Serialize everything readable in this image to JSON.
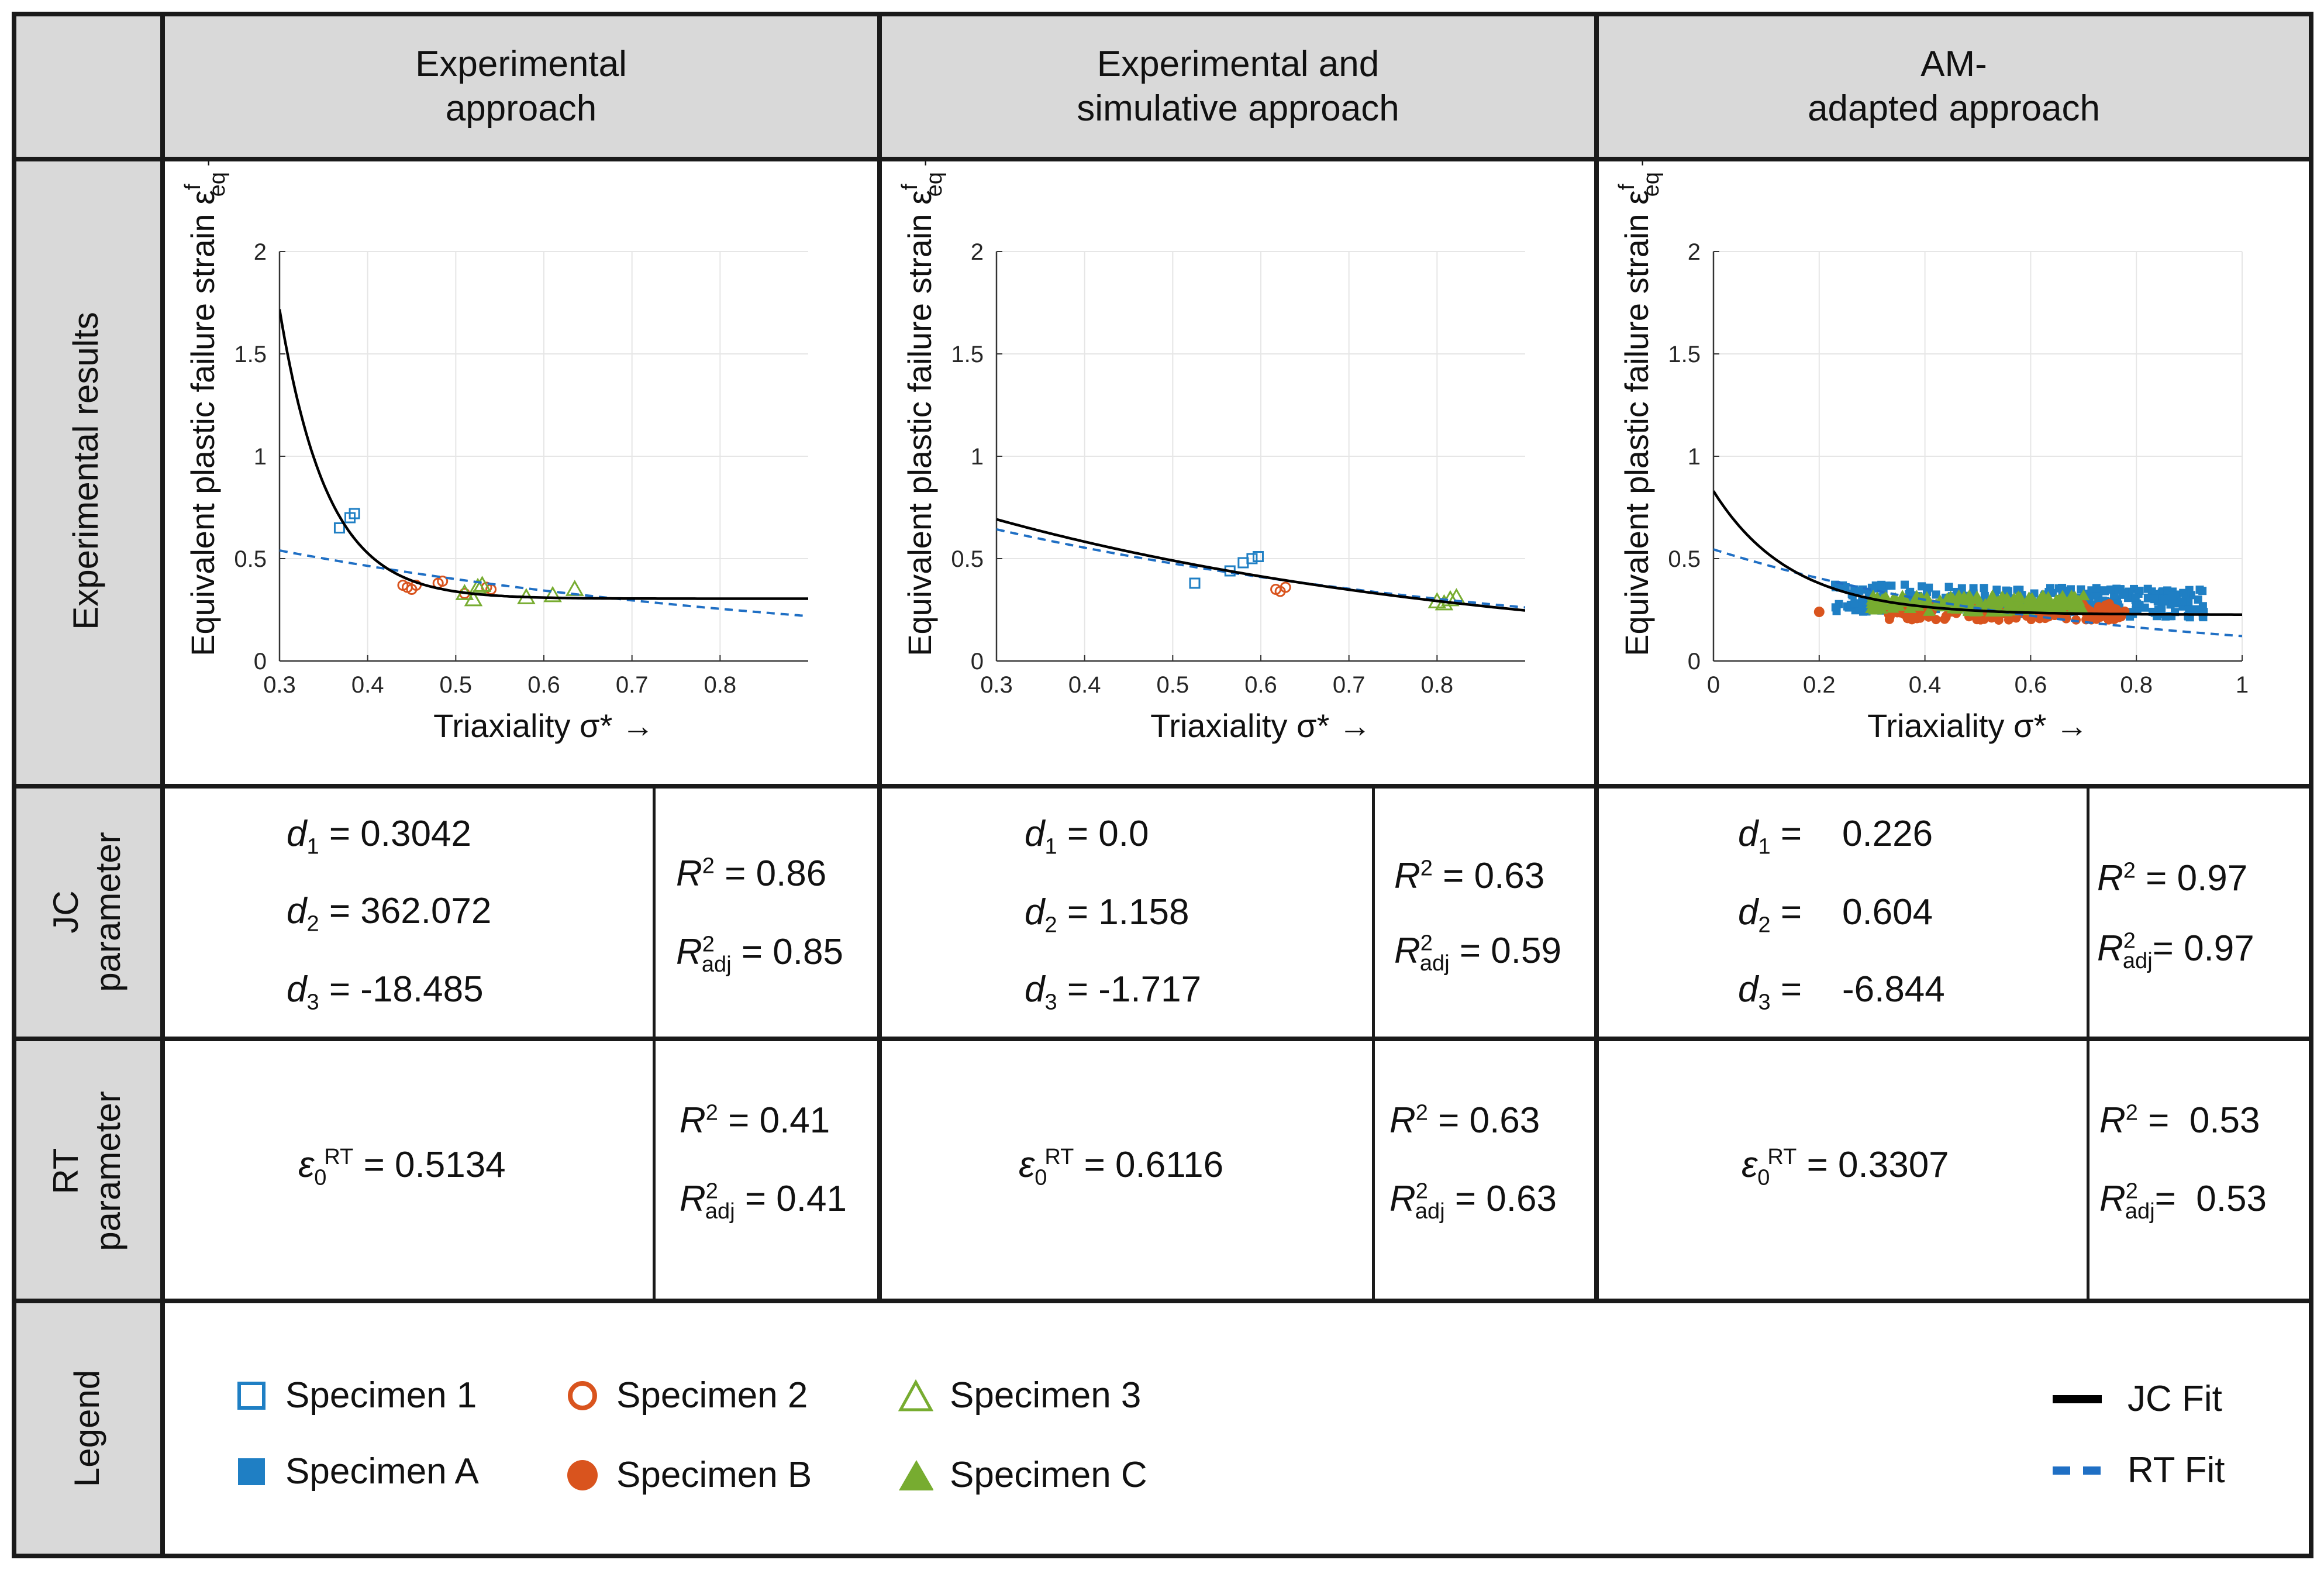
{
  "headers": {
    "col1": "Experimental\napproach",
    "col2": "Experimental and\nsimulative approach",
    "col3": "AM-\nadapted approach"
  },
  "rows": {
    "experimental": "Experimental results",
    "jc": "JC\nparameter",
    "rt": "RT\nparameter",
    "legend": "Legend"
  },
  "colors": {
    "specimen1": "#1f7fc4",
    "specimen2": "#d9541e",
    "specimen3": "#77ac30",
    "jc_fit": "#000000",
    "rt_fit": "#1f6fc4",
    "header_bg": "#d9d9d9"
  },
  "chart_data": [
    {
      "type": "scatter",
      "title": "Experimental approach",
      "xlabel": "Triaxiality σ* →",
      "ylabel": "Equivalent plastic failure strain ε",
      "ylabel_sup": "f",
      "ylabel_sub": "eq",
      "ylabel_arrow": "→",
      "xlim": [
        0.3,
        0.9
      ],
      "ylim": [
        0,
        2
      ],
      "xticks": [
        0.3,
        0.4,
        0.5,
        0.6,
        0.7,
        0.8
      ],
      "xtick_labels": [
        "0.3",
        "0.4",
        "0.5",
        "0.6",
        "0.7",
        "0.8"
      ],
      "yticks": [
        0,
        0.5,
        1,
        1.5,
        2
      ],
      "ytick_labels": [
        "0",
        "0.5",
        "1",
        "1.5",
        "2"
      ],
      "jc": {
        "d1": 0.3042,
        "d2": 362.072,
        "d3": -18.485
      },
      "rt": {
        "eps0": 0.5134
      },
      "series": [
        {
          "name": "Specimen 1",
          "marker": "square-open",
          "x": [
            0.368,
            0.38,
            0.385
          ],
          "y": [
            0.65,
            0.7,
            0.72
          ]
        },
        {
          "name": "Specimen 2",
          "marker": "circle-open",
          "x": [
            0.44,
            0.445,
            0.45,
            0.455,
            0.48,
            0.485,
            0.51,
            0.535,
            0.54
          ],
          "y": [
            0.37,
            0.36,
            0.35,
            0.37,
            0.38,
            0.39,
            0.33,
            0.36,
            0.35
          ]
        },
        {
          "name": "Specimen 3",
          "marker": "triangle-open",
          "x": [
            0.51,
            0.52,
            0.525,
            0.53,
            0.58,
            0.61,
            0.635
          ],
          "y": [
            0.33,
            0.3,
            0.36,
            0.37,
            0.31,
            0.32,
            0.35
          ]
        }
      ]
    },
    {
      "type": "scatter",
      "title": "Experimental and simulative approach",
      "xlabel": "Triaxiality σ* →",
      "ylabel": "Equivalent plastic failure strain ε",
      "ylabel_sup": "f",
      "ylabel_sub": "eq",
      "ylabel_arrow": "→",
      "xlim": [
        0.3,
        0.9
      ],
      "ylim": [
        0,
        2
      ],
      "xticks": [
        0.3,
        0.4,
        0.5,
        0.6,
        0.7,
        0.8
      ],
      "xtick_labels": [
        "0.3",
        "0.4",
        "0.5",
        "0.6",
        "0.7",
        "0.8"
      ],
      "yticks": [
        0,
        0.5,
        1,
        1.5,
        2
      ],
      "ytick_labels": [
        "0",
        "0.5",
        "1",
        "1.5",
        "2"
      ],
      "jc": {
        "d1": 0.0,
        "d2": 1.158,
        "d3": -1.717
      },
      "rt": {
        "eps0": 0.6116
      },
      "series": [
        {
          "name": "Specimen 1",
          "marker": "square-open",
          "x": [
            0.525,
            0.565,
            0.58,
            0.59,
            0.597
          ],
          "y": [
            0.38,
            0.44,
            0.48,
            0.5,
            0.51
          ]
        },
        {
          "name": "Specimen 2",
          "marker": "circle-open",
          "x": [
            0.617,
            0.622,
            0.628
          ],
          "y": [
            0.35,
            0.34,
            0.36
          ]
        },
        {
          "name": "Specimen 3",
          "marker": "triangle-open",
          "x": [
            0.8,
            0.808,
            0.815,
            0.822
          ],
          "y": [
            0.29,
            0.28,
            0.3,
            0.31
          ]
        }
      ]
    },
    {
      "type": "scatter",
      "title": "AM-adapted approach",
      "xlabel": "Triaxiality σ* →",
      "ylabel": "Equivalent plastic failure strain ε",
      "ylabel_sup": "f",
      "ylabel_sub": "eq",
      "ylabel_arrow": "→",
      "xlim": [
        0,
        1
      ],
      "ylim": [
        0,
        2
      ],
      "xticks": [
        0,
        0.2,
        0.4,
        0.6,
        0.8,
        1
      ],
      "xtick_labels": [
        "0",
        "0.2",
        "0.4",
        "0.6",
        "0.8",
        "1"
      ],
      "yticks": [
        0,
        0.5,
        1,
        1.5,
        2
      ],
      "ytick_labels": [
        "0",
        "0.5",
        "1",
        "1.5",
        "2"
      ],
      "jc": {
        "d1": 0.226,
        "d2": 0.604,
        "d3": -6.844
      },
      "rt": {
        "eps0": 0.3307
      },
      "cloud": {
        "A": {
          "name": "Specimen A",
          "x_range": [
            0.23,
            0.93
          ],
          "y_range": [
            0.2,
            0.38
          ],
          "count": 320
        },
        "B": {
          "name": "Specimen B",
          "x_range": [
            0.33,
            0.78
          ],
          "y_range": [
            0.2,
            0.28
          ],
          "count": 180
        },
        "C": {
          "name": "Specimen C",
          "x_range": [
            0.3,
            0.7
          ],
          "y_range": [
            0.24,
            0.32
          ],
          "count": 160
        }
      },
      "series": [
        {
          "name": "Specimen B outlier",
          "marker": "circle-filled",
          "x": [
            0.2
          ],
          "y": [
            0.24
          ]
        },
        {
          "name": "Specimen C outlier",
          "marker": "triangle-filled",
          "x": [
            0.3
          ],
          "y": [
            0.26
          ]
        }
      ]
    }
  ],
  "jc_params": [
    {
      "d1_label": "d",
      "d1_sub": "1",
      "d1_val": "= 0.3042",
      "d2_label": "d",
      "d2_sub": "2",
      "d2_val": "= 362.072",
      "d3_label": "d",
      "d3_sub": "3",
      "d3_val": "= -18.485",
      "r2_label": "R",
      "r2_sup": "2",
      "r2_val": "= 0.86",
      "r2adj_label": "R",
      "r2adj_sup": "2",
      "r2adj_sub": "adj",
      "r2adj_val": "= 0.85"
    },
    {
      "d1_label": "d",
      "d1_sub": "1",
      "d1_val": "= 0.0",
      "d2_label": "d",
      "d2_sub": "2",
      "d2_val": "= 1.158",
      "d3_label": "d",
      "d3_sub": "3",
      "d3_val": "= -1.717",
      "r2_label": "R",
      "r2_sup": "2",
      "r2_val": "= 0.63",
      "r2adj_label": "R",
      "r2adj_sup": "2",
      "r2adj_sub": "adj",
      "r2adj_val": "= 0.59"
    },
    {
      "d1_label": "d",
      "d1_sub": "1",
      "d1_val": "=    0.226",
      "d2_label": "d",
      "d2_sub": "2",
      "d2_val": "=    0.604",
      "d3_label": "d",
      "d3_sub": "3",
      "d3_val": "=    -6.844",
      "r2_label": "R",
      "r2_sup": "2",
      "r2_val": "= 0.97",
      "r2adj_label": "R",
      "r2adj_sup": "2",
      "r2adj_sub": "adj",
      "r2adj_val": "= 0.97"
    }
  ],
  "rt_params": [
    {
      "eps_label": "ε",
      "eps_sub": "0",
      "eps_sup": "RT",
      "eps_val": "= 0.5134",
      "r2_label": "R",
      "r2_sup": "2",
      "r2_val": "= 0.41",
      "r2adj_label": "R",
      "r2adj_sup": "2",
      "r2adj_sub": "adj",
      "r2adj_val": "= 0.41"
    },
    {
      "eps_label": "ε",
      "eps_sub": "0",
      "eps_sup": "RT",
      "eps_val": "= 0.6116",
      "r2_label": "R",
      "r2_sup": "2",
      "r2_val": "= 0.63",
      "r2adj_label": "R",
      "r2adj_sup": "2",
      "r2adj_sub": "adj",
      "r2adj_val": "= 0.63"
    },
    {
      "eps_label": "ε",
      "eps_sub": "0",
      "eps_sup": "RT",
      "eps_val": "= 0.3307",
      "r2_label": "R",
      "r2_sup": "2",
      "r2_val": "=  0.53",
      "r2adj_label": "R",
      "r2adj_sup": "2",
      "r2adj_sub": "adj",
      "r2adj_val": "=  0.53"
    }
  ],
  "legend": {
    "specimen1": "Specimen 1",
    "specimen2": "Specimen 2",
    "specimen3": "Specimen 3",
    "specimenA": "Specimen A",
    "specimenB": "Specimen B",
    "specimenC": "Specimen C",
    "jc_fit": "JC Fit",
    "rt_fit": "RT Fit"
  }
}
